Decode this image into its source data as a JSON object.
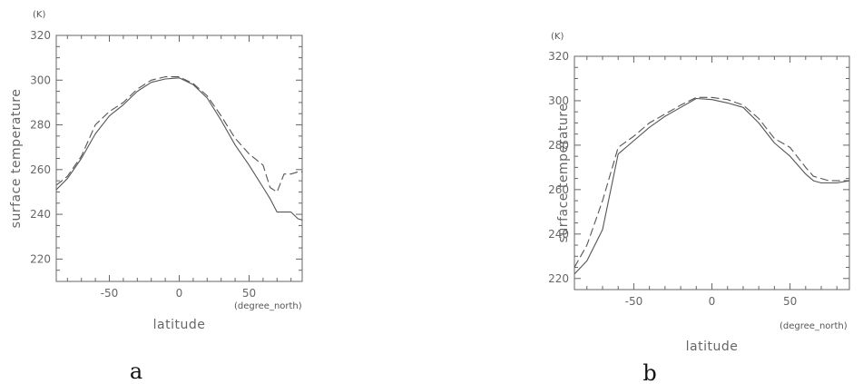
{
  "colors": {
    "line": "#555555",
    "axis": "#666666",
    "text": "#666666"
  },
  "chart_data": [
    {
      "type": "line",
      "panel_label": "a",
      "xlabel": "latitude",
      "xunit": "(degree_north)",
      "ylabel": "surface temperature",
      "yunit": "(K)",
      "xlim": [
        -88,
        88
      ],
      "ylim": [
        210,
        320
      ],
      "xticks": [
        -50,
        0,
        50
      ],
      "yticks": [
        220,
        240,
        260,
        280,
        300,
        320
      ],
      "grid": false,
      "series": [
        {
          "style": "solid",
          "x": [
            -88,
            -80,
            -70,
            -60,
            -50,
            -40,
            -30,
            -20,
            -10,
            0,
            10,
            20,
            30,
            40,
            50,
            60,
            65,
            70,
            75,
            80,
            85,
            88
          ],
          "y": [
            251,
            256,
            265,
            276,
            284,
            289,
            295,
            299,
            300.5,
            301,
            298,
            292,
            282,
            271,
            262,
            252,
            247,
            241,
            241,
            241,
            238,
            237.5
          ]
        },
        {
          "style": "dashed",
          "x": [
            -88,
            -80,
            -70,
            -60,
            -50,
            -40,
            -30,
            -20,
            -10,
            0,
            10,
            20,
            30,
            40,
            50,
            60,
            65,
            70,
            75,
            80,
            85,
            88
          ],
          "y": [
            253,
            257,
            266,
            280,
            286,
            290,
            296,
            300,
            301.5,
            301.5,
            298.5,
            293,
            284,
            274,
            267,
            262,
            252,
            250,
            258,
            258,
            259,
            259
          ]
        }
      ]
    },
    {
      "type": "line",
      "panel_label": "b",
      "xlabel": "latitude",
      "xunit": "(degree_north)",
      "ylabel": "surface temperature",
      "yunit": "(K)",
      "xlim": [
        -88,
        88
      ],
      "ylim": [
        215,
        320
      ],
      "xticks": [
        -50,
        0,
        50
      ],
      "yticks": [
        220,
        240,
        260,
        280,
        300,
        320
      ],
      "grid": false,
      "series": [
        {
          "style": "solid",
          "x": [
            -88,
            -80,
            -70,
            -60,
            -50,
            -40,
            -30,
            -20,
            -10,
            0,
            10,
            20,
            30,
            40,
            50,
            60,
            65,
            70,
            75,
            80,
            88
          ],
          "y": [
            222,
            228,
            242,
            276,
            282,
            288,
            293,
            297,
            301,
            300.5,
            299,
            297,
            290,
            281,
            275,
            267,
            264,
            263,
            263,
            263,
            264
          ]
        },
        {
          "style": "dashed",
          "x": [
            -88,
            -80,
            -70,
            -60,
            -50,
            -40,
            -30,
            -20,
            -10,
            0,
            10,
            20,
            30,
            40,
            50,
            60,
            65,
            70,
            75,
            80,
            88
          ],
          "y": [
            225,
            235,
            255,
            279,
            284,
            290,
            294,
            298,
            301.5,
            301.5,
            300.5,
            298,
            292,
            283,
            279,
            270,
            266,
            265,
            264,
            264,
            264
          ]
        }
      ]
    }
  ]
}
